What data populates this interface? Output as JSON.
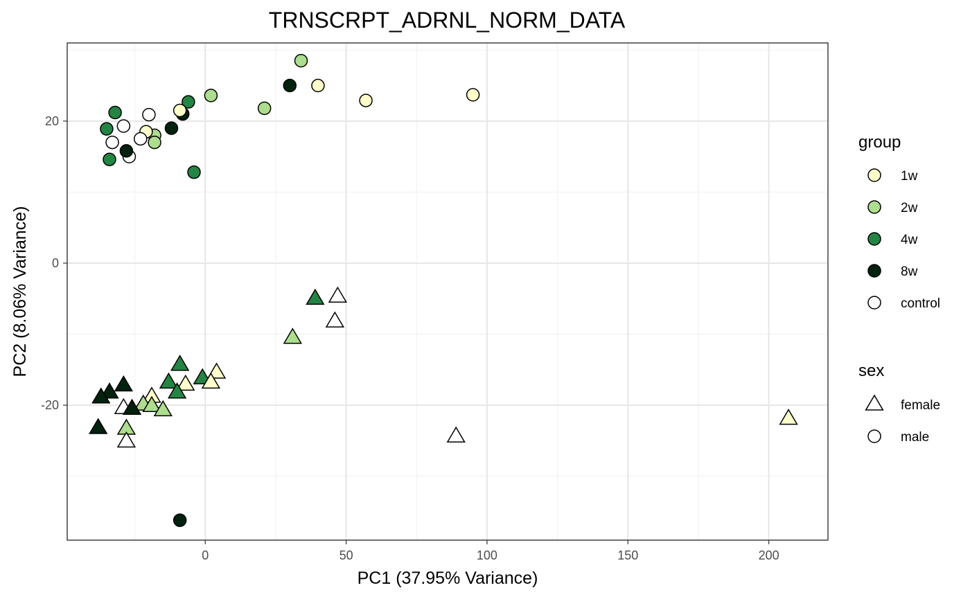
{
  "chart_data": {
    "type": "scatter",
    "title": "TRNSCRPT_ADRNL_NORM_DATA",
    "xlabel": "PC1 (37.95% Variance)",
    "ylabel": "PC2 (8.06% Variance)",
    "xlim": [
      -49,
      221
    ],
    "ylim": [
      -39,
      31
    ],
    "x_ticks": [
      0,
      50,
      100,
      150,
      200
    ],
    "y_ticks": [
      -20,
      0,
      20
    ],
    "grid": true,
    "legend_placement": "right",
    "legends": {
      "group": {
        "title": "group",
        "entries": [
          {
            "label": "1w",
            "color": "#FFFFCC"
          },
          {
            "label": "2w",
            "color": "#ADDD8E"
          },
          {
            "label": "4w",
            "color": "#238443"
          },
          {
            "label": "8w",
            "color": "#00220F"
          },
          {
            "label": "control",
            "color": "#FFFFFF"
          }
        ]
      },
      "sex": {
        "title": "sex",
        "entries": [
          {
            "label": "female",
            "shape": "triangle"
          },
          {
            "label": "male",
            "shape": "circle"
          }
        ]
      }
    },
    "points": [
      {
        "x": 34,
        "y": 28.5,
        "group": "2w",
        "sex": "male"
      },
      {
        "x": 30,
        "y": 25,
        "group": "8w",
        "sex": "male"
      },
      {
        "x": 40,
        "y": 25,
        "group": "1w",
        "sex": "male"
      },
      {
        "x": 2,
        "y": 23.6,
        "group": "2w",
        "sex": "male"
      },
      {
        "x": 95,
        "y": 23.7,
        "group": "1w",
        "sex": "male"
      },
      {
        "x": 57,
        "y": 22.9,
        "group": "1w",
        "sex": "male"
      },
      {
        "x": -6,
        "y": 22.7,
        "group": "4w",
        "sex": "male"
      },
      {
        "x": 21,
        "y": 21.8,
        "group": "2w",
        "sex": "male"
      },
      {
        "x": -32,
        "y": 21.2,
        "group": "4w",
        "sex": "male"
      },
      {
        "x": -8,
        "y": 21,
        "group": "8w",
        "sex": "male"
      },
      {
        "x": -9,
        "y": 21.5,
        "group": "1w",
        "sex": "male"
      },
      {
        "x": -20,
        "y": 20.9,
        "group": "control",
        "sex": "male"
      },
      {
        "x": -29,
        "y": 19.3,
        "group": "control",
        "sex": "male"
      },
      {
        "x": -35,
        "y": 18.9,
        "group": "4w",
        "sex": "male"
      },
      {
        "x": -12,
        "y": 19,
        "group": "8w",
        "sex": "male"
      },
      {
        "x": -18,
        "y": 18,
        "group": "2w",
        "sex": "male"
      },
      {
        "x": -21,
        "y": 18.5,
        "group": "1w",
        "sex": "male"
      },
      {
        "x": -23,
        "y": 17.5,
        "group": "control",
        "sex": "male"
      },
      {
        "x": -33,
        "y": 17,
        "group": "control",
        "sex": "male"
      },
      {
        "x": -18,
        "y": 17,
        "group": "2w",
        "sex": "male"
      },
      {
        "x": -27,
        "y": 15,
        "group": "control",
        "sex": "male"
      },
      {
        "x": -28,
        "y": 15.8,
        "group": "8w",
        "sex": "male"
      },
      {
        "x": -34,
        "y": 14.6,
        "group": "4w",
        "sex": "male"
      },
      {
        "x": -4,
        "y": 12.8,
        "group": "4w",
        "sex": "male"
      },
      {
        "x": -9,
        "y": -36.2,
        "group": "8w",
        "sex": "male"
      },
      {
        "x": 47,
        "y": -4.7,
        "group": "control",
        "sex": "female"
      },
      {
        "x": 39,
        "y": -5,
        "group": "4w",
        "sex": "female"
      },
      {
        "x": 46,
        "y": -8.2,
        "group": "control",
        "sex": "female"
      },
      {
        "x": 31,
        "y": -10.5,
        "group": "2w",
        "sex": "female"
      },
      {
        "x": -9,
        "y": -14.3,
        "group": "4w",
        "sex": "female"
      },
      {
        "x": 4,
        "y": -15.4,
        "group": "1w",
        "sex": "female"
      },
      {
        "x": -1,
        "y": -16.2,
        "group": "4w",
        "sex": "female"
      },
      {
        "x": -13,
        "y": -16.8,
        "group": "4w",
        "sex": "female"
      },
      {
        "x": 2,
        "y": -16.8,
        "group": "1w",
        "sex": "female"
      },
      {
        "x": -7,
        "y": -17.1,
        "group": "1w",
        "sex": "female"
      },
      {
        "x": -29,
        "y": -17.2,
        "group": "8w",
        "sex": "female"
      },
      {
        "x": -34,
        "y": -18.2,
        "group": "8w",
        "sex": "female"
      },
      {
        "x": -10,
        "y": -18.2,
        "group": "4w",
        "sex": "female"
      },
      {
        "x": -37,
        "y": -18.9,
        "group": "8w",
        "sex": "female"
      },
      {
        "x": -19,
        "y": -18.8,
        "group": "1w",
        "sex": "female"
      },
      {
        "x": -22,
        "y": -19.9,
        "group": "2w",
        "sex": "female"
      },
      {
        "x": -19,
        "y": -20.1,
        "group": "2w",
        "sex": "female"
      },
      {
        "x": -29,
        "y": -20.4,
        "group": "control",
        "sex": "female"
      },
      {
        "x": -26,
        "y": -20.5,
        "group": "8w",
        "sex": "female"
      },
      {
        "x": -15,
        "y": -20.7,
        "group": "2w",
        "sex": "female"
      },
      {
        "x": 207,
        "y": -21.9,
        "group": "1w",
        "sex": "female"
      },
      {
        "x": -38,
        "y": -23.2,
        "group": "8w",
        "sex": "female"
      },
      {
        "x": -28,
        "y": -23.3,
        "group": "2w",
        "sex": "female"
      },
      {
        "x": 89,
        "y": -24.4,
        "group": "control",
        "sex": "female"
      },
      {
        "x": -28,
        "y": -25.1,
        "group": "control",
        "sex": "female"
      }
    ]
  }
}
